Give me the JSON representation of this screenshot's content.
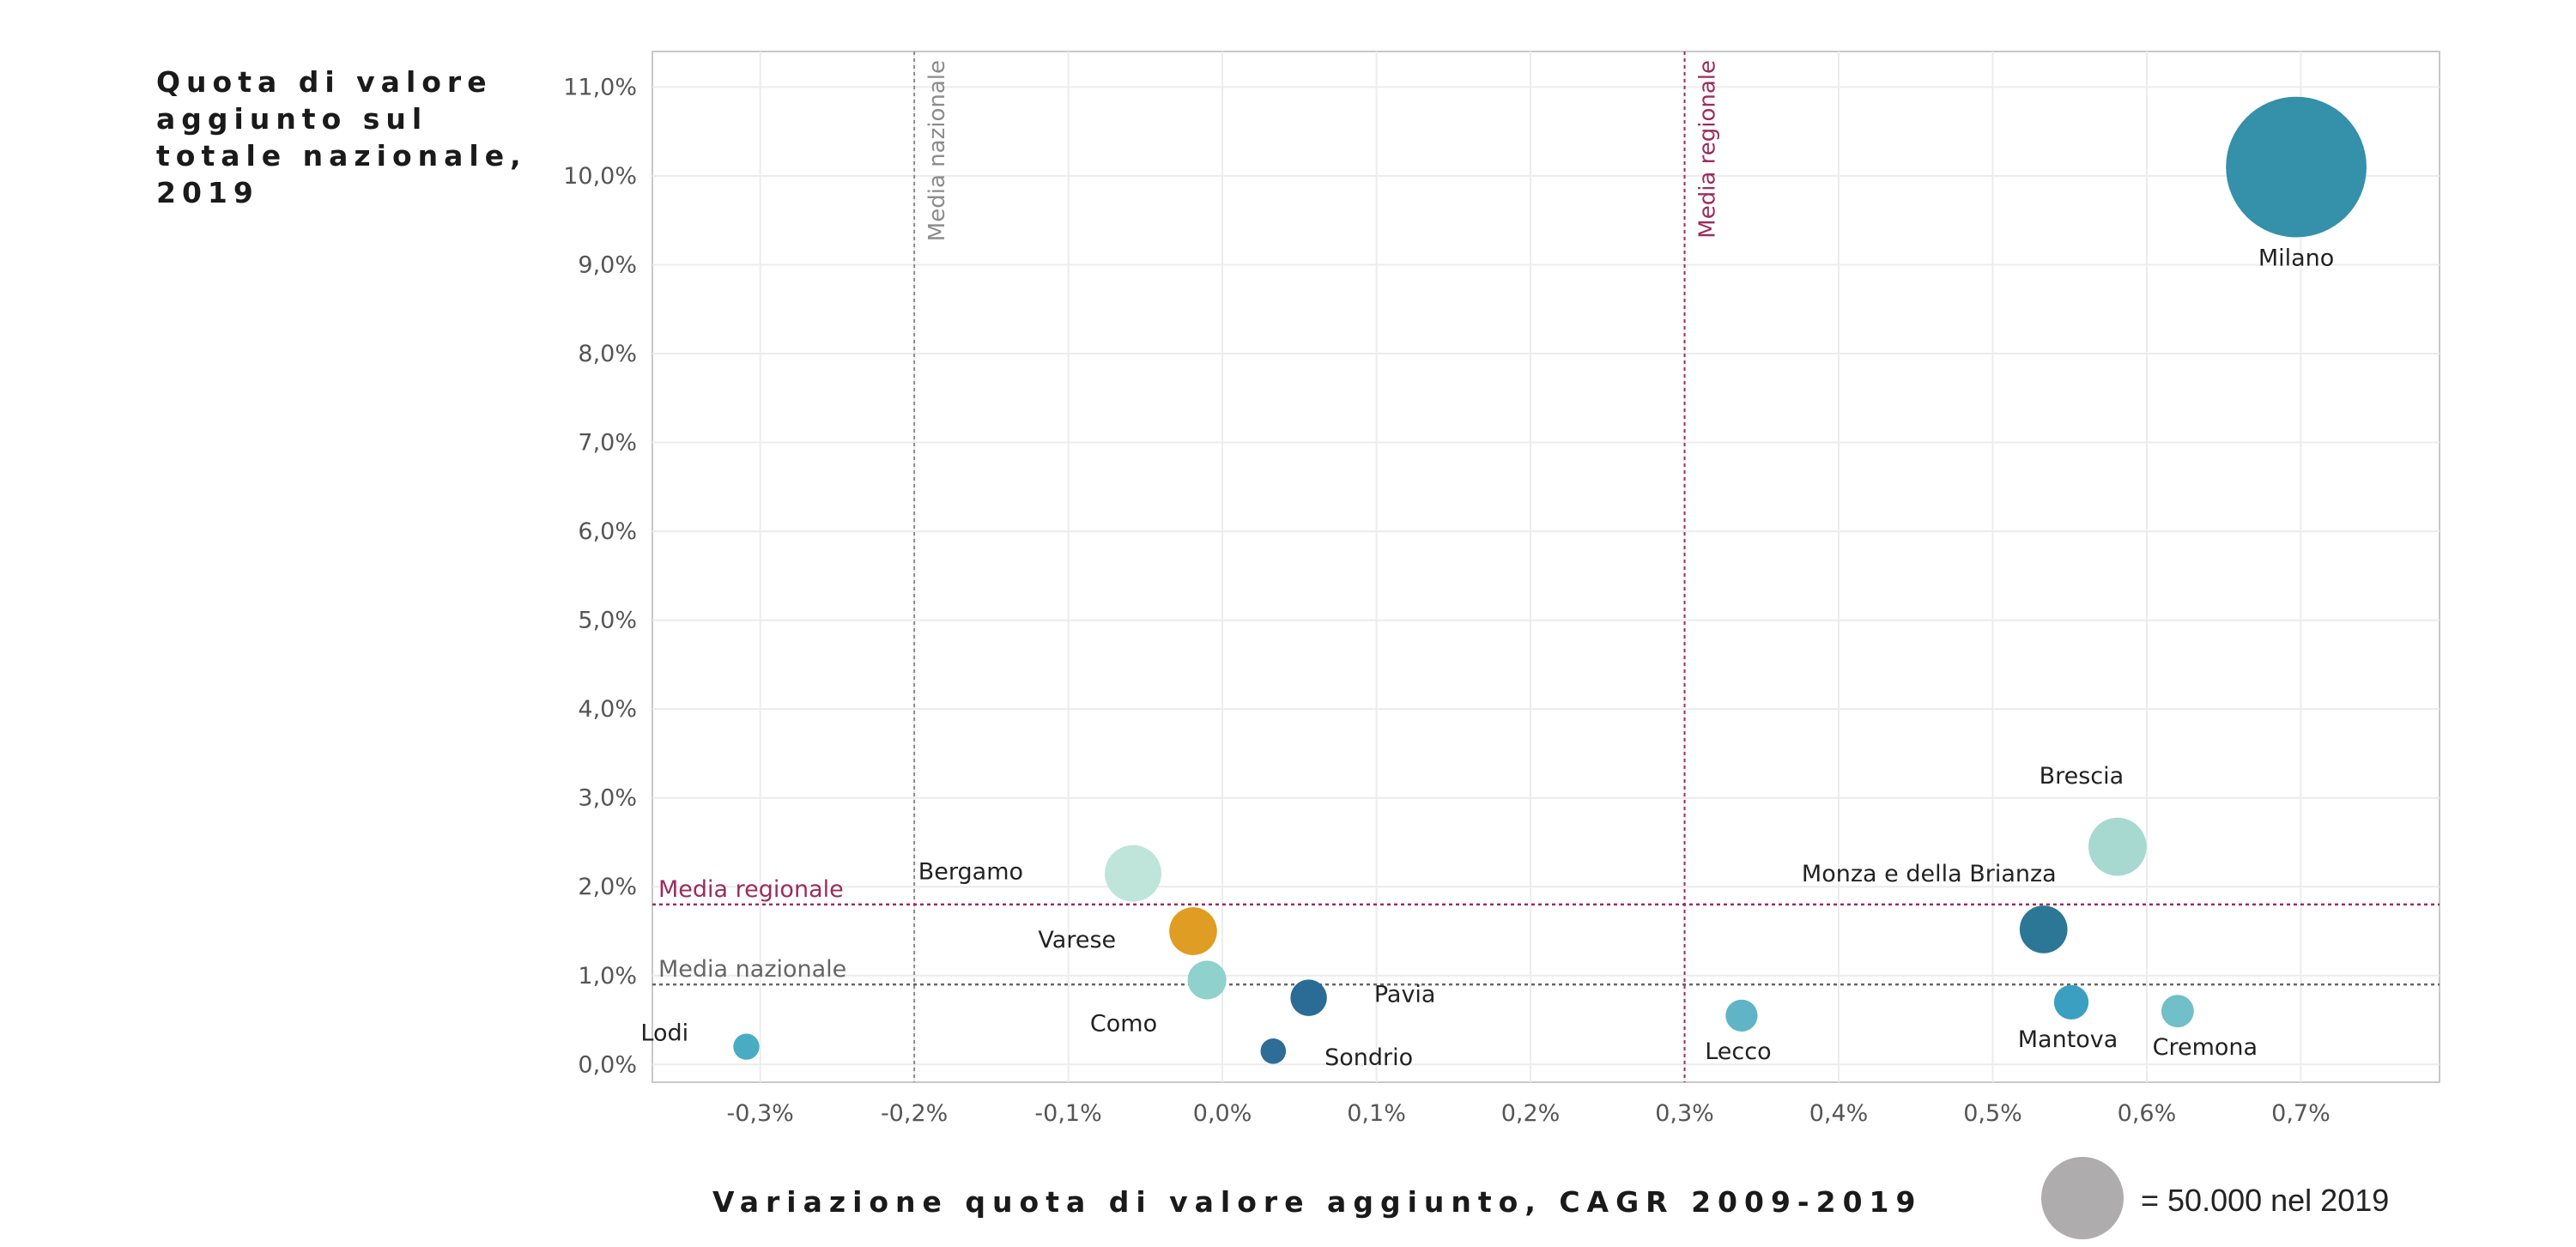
{
  "chart_data": {
    "type": "scatter",
    "ylabel": "Quota di valore aggiunto sul totale nazionale, 2019",
    "xlabel": "Variazione quota di valore aggiunto, CAGR 2009-2019",
    "xlim": [
      -0.37,
      0.79
    ],
    "ylim": [
      -0.2,
      11.4
    ],
    "xticks": [
      -0.3,
      -0.2,
      -0.1,
      0.0,
      0.1,
      0.2,
      0.3,
      0.4,
      0.5,
      0.6,
      0.7
    ],
    "xtick_labels": [
      "-0,3%",
      "-0,2%",
      "-0,1%",
      "0,0%",
      "0,1%",
      "0,2%",
      "0,3%",
      "0,4%",
      "0,5%",
      "0,6%",
      "0,7%"
    ],
    "yticks": [
      0,
      1,
      2,
      3,
      4,
      5,
      6,
      7,
      8,
      9,
      10,
      11
    ],
    "ytick_labels": [
      "0,0%",
      "1,0%",
      "2,0%",
      "3,0%",
      "4,0%",
      "5,0%",
      "6,0%",
      "7,0%",
      "8,0%",
      "9,0%",
      "10,0%",
      "11,0%"
    ],
    "reference_lines": [
      {
        "axis": "x",
        "value": -0.2,
        "label": "Media nazionale",
        "color": "#8c8c8c"
      },
      {
        "axis": "x",
        "value": 0.3,
        "label": "Media regionale",
        "color": "#9b2c5d"
      },
      {
        "axis": "y",
        "value": 1.8,
        "label": "Media regionale",
        "color": "#9b2c5d"
      },
      {
        "axis": "y",
        "value": 0.9,
        "label": "Media nazionale",
        "color": "#666666"
      }
    ],
    "points": [
      {
        "name": "Milano",
        "x": 0.697,
        "y": 10.1,
        "size": 580,
        "color": "#3590aa"
      },
      {
        "name": "Brescia",
        "x": 0.581,
        "y": 2.45,
        "size": 99,
        "color": "#a7d9d1"
      },
      {
        "name": "Bergamo",
        "x": -0.058,
        "y": 2.15,
        "size": 94,
        "color": "#bfe5da"
      },
      {
        "name": "Monza e della Brianza",
        "x": 0.533,
        "y": 1.52,
        "size": 67,
        "color": "#2c7696"
      },
      {
        "name": "Varese",
        "x": -0.019,
        "y": 1.5,
        "size": 67,
        "color": "#e09d23"
      },
      {
        "name": "Como",
        "x": -0.01,
        "y": 0.95,
        "size": 44,
        "color": "#8fd1cd"
      },
      {
        "name": "Pavia",
        "x": 0.056,
        "y": 0.75,
        "size": 39,
        "color": "#2a6c95"
      },
      {
        "name": "Mantova",
        "x": 0.551,
        "y": 0.7,
        "size": 35,
        "color": "#3a9fc0"
      },
      {
        "name": "Cremona",
        "x": 0.62,
        "y": 0.6,
        "size": 31,
        "color": "#70bfc9"
      },
      {
        "name": "Lecco",
        "x": 0.337,
        "y": 0.55,
        "size": 30,
        "color": "#5fb4c5"
      },
      {
        "name": "Lodi",
        "x": -0.309,
        "y": 0.2,
        "size": 20,
        "color": "#4aacc2"
      },
      {
        "name": "Sondrio",
        "x": 0.033,
        "y": 0.15,
        "size": 19,
        "color": "#2d6d97"
      }
    ],
    "size_legend": {
      "label": "= 50.000 nel 2019",
      "color": "#aeacac"
    }
  }
}
